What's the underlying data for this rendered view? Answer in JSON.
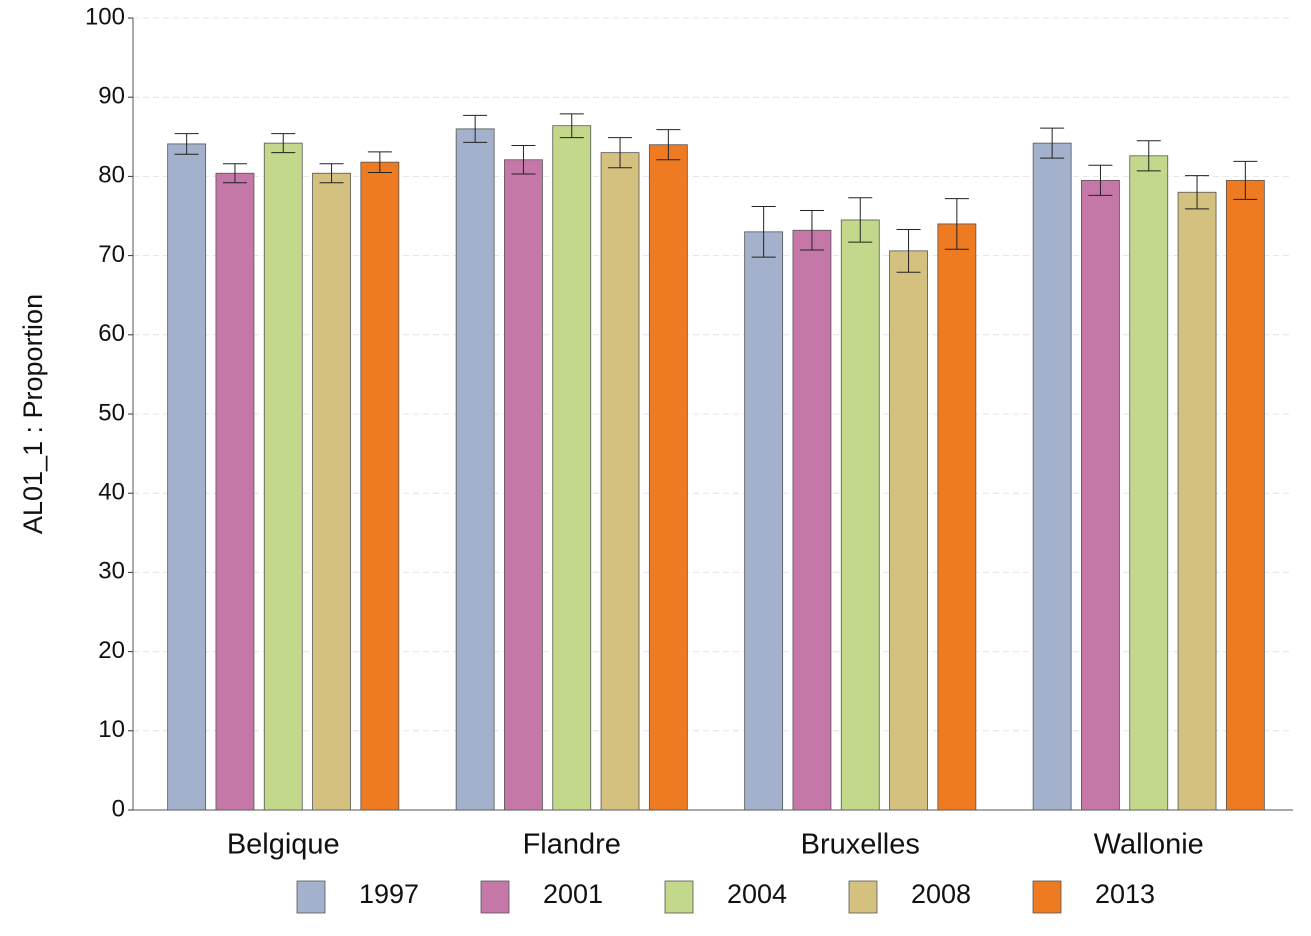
{
  "chart_data": {
    "type": "bar",
    "y_label": "AL01_1 : Proportion",
    "categories": [
      "Belgique",
      "Flandre",
      "Bruxelles",
      "Wallonie"
    ],
    "series": [
      {
        "name": "1997",
        "color": "#a3b1cd",
        "values": [
          84.1,
          86.0,
          73.0,
          84.2
        ],
        "errors": [
          1.3,
          1.7,
          3.2,
          1.9
        ]
      },
      {
        "name": "2001",
        "color": "#c578a8",
        "values": [
          80.4,
          82.1,
          73.2,
          79.5
        ],
        "errors": [
          1.2,
          1.8,
          2.5,
          1.9
        ]
      },
      {
        "name": "2004",
        "color": "#c2d88a",
        "values": [
          84.2,
          86.4,
          74.5,
          82.6
        ],
        "errors": [
          1.2,
          1.5,
          2.8,
          1.9
        ]
      },
      {
        "name": "2008",
        "color": "#d4c07f",
        "values": [
          80.4,
          83.0,
          70.6,
          78.0
        ],
        "errors": [
          1.2,
          1.9,
          2.7,
          2.1
        ]
      },
      {
        "name": "2013",
        "color": "#ee7a22",
        "values": [
          81.8,
          84.0,
          74.0,
          79.5
        ],
        "errors": [
          1.3,
          1.9,
          3.2,
          2.4
        ]
      }
    ],
    "ylim": [
      0,
      100
    ],
    "yticks": [
      0,
      10,
      20,
      30,
      40,
      50,
      60,
      70,
      80,
      90,
      100
    ],
    "grid": true
  }
}
